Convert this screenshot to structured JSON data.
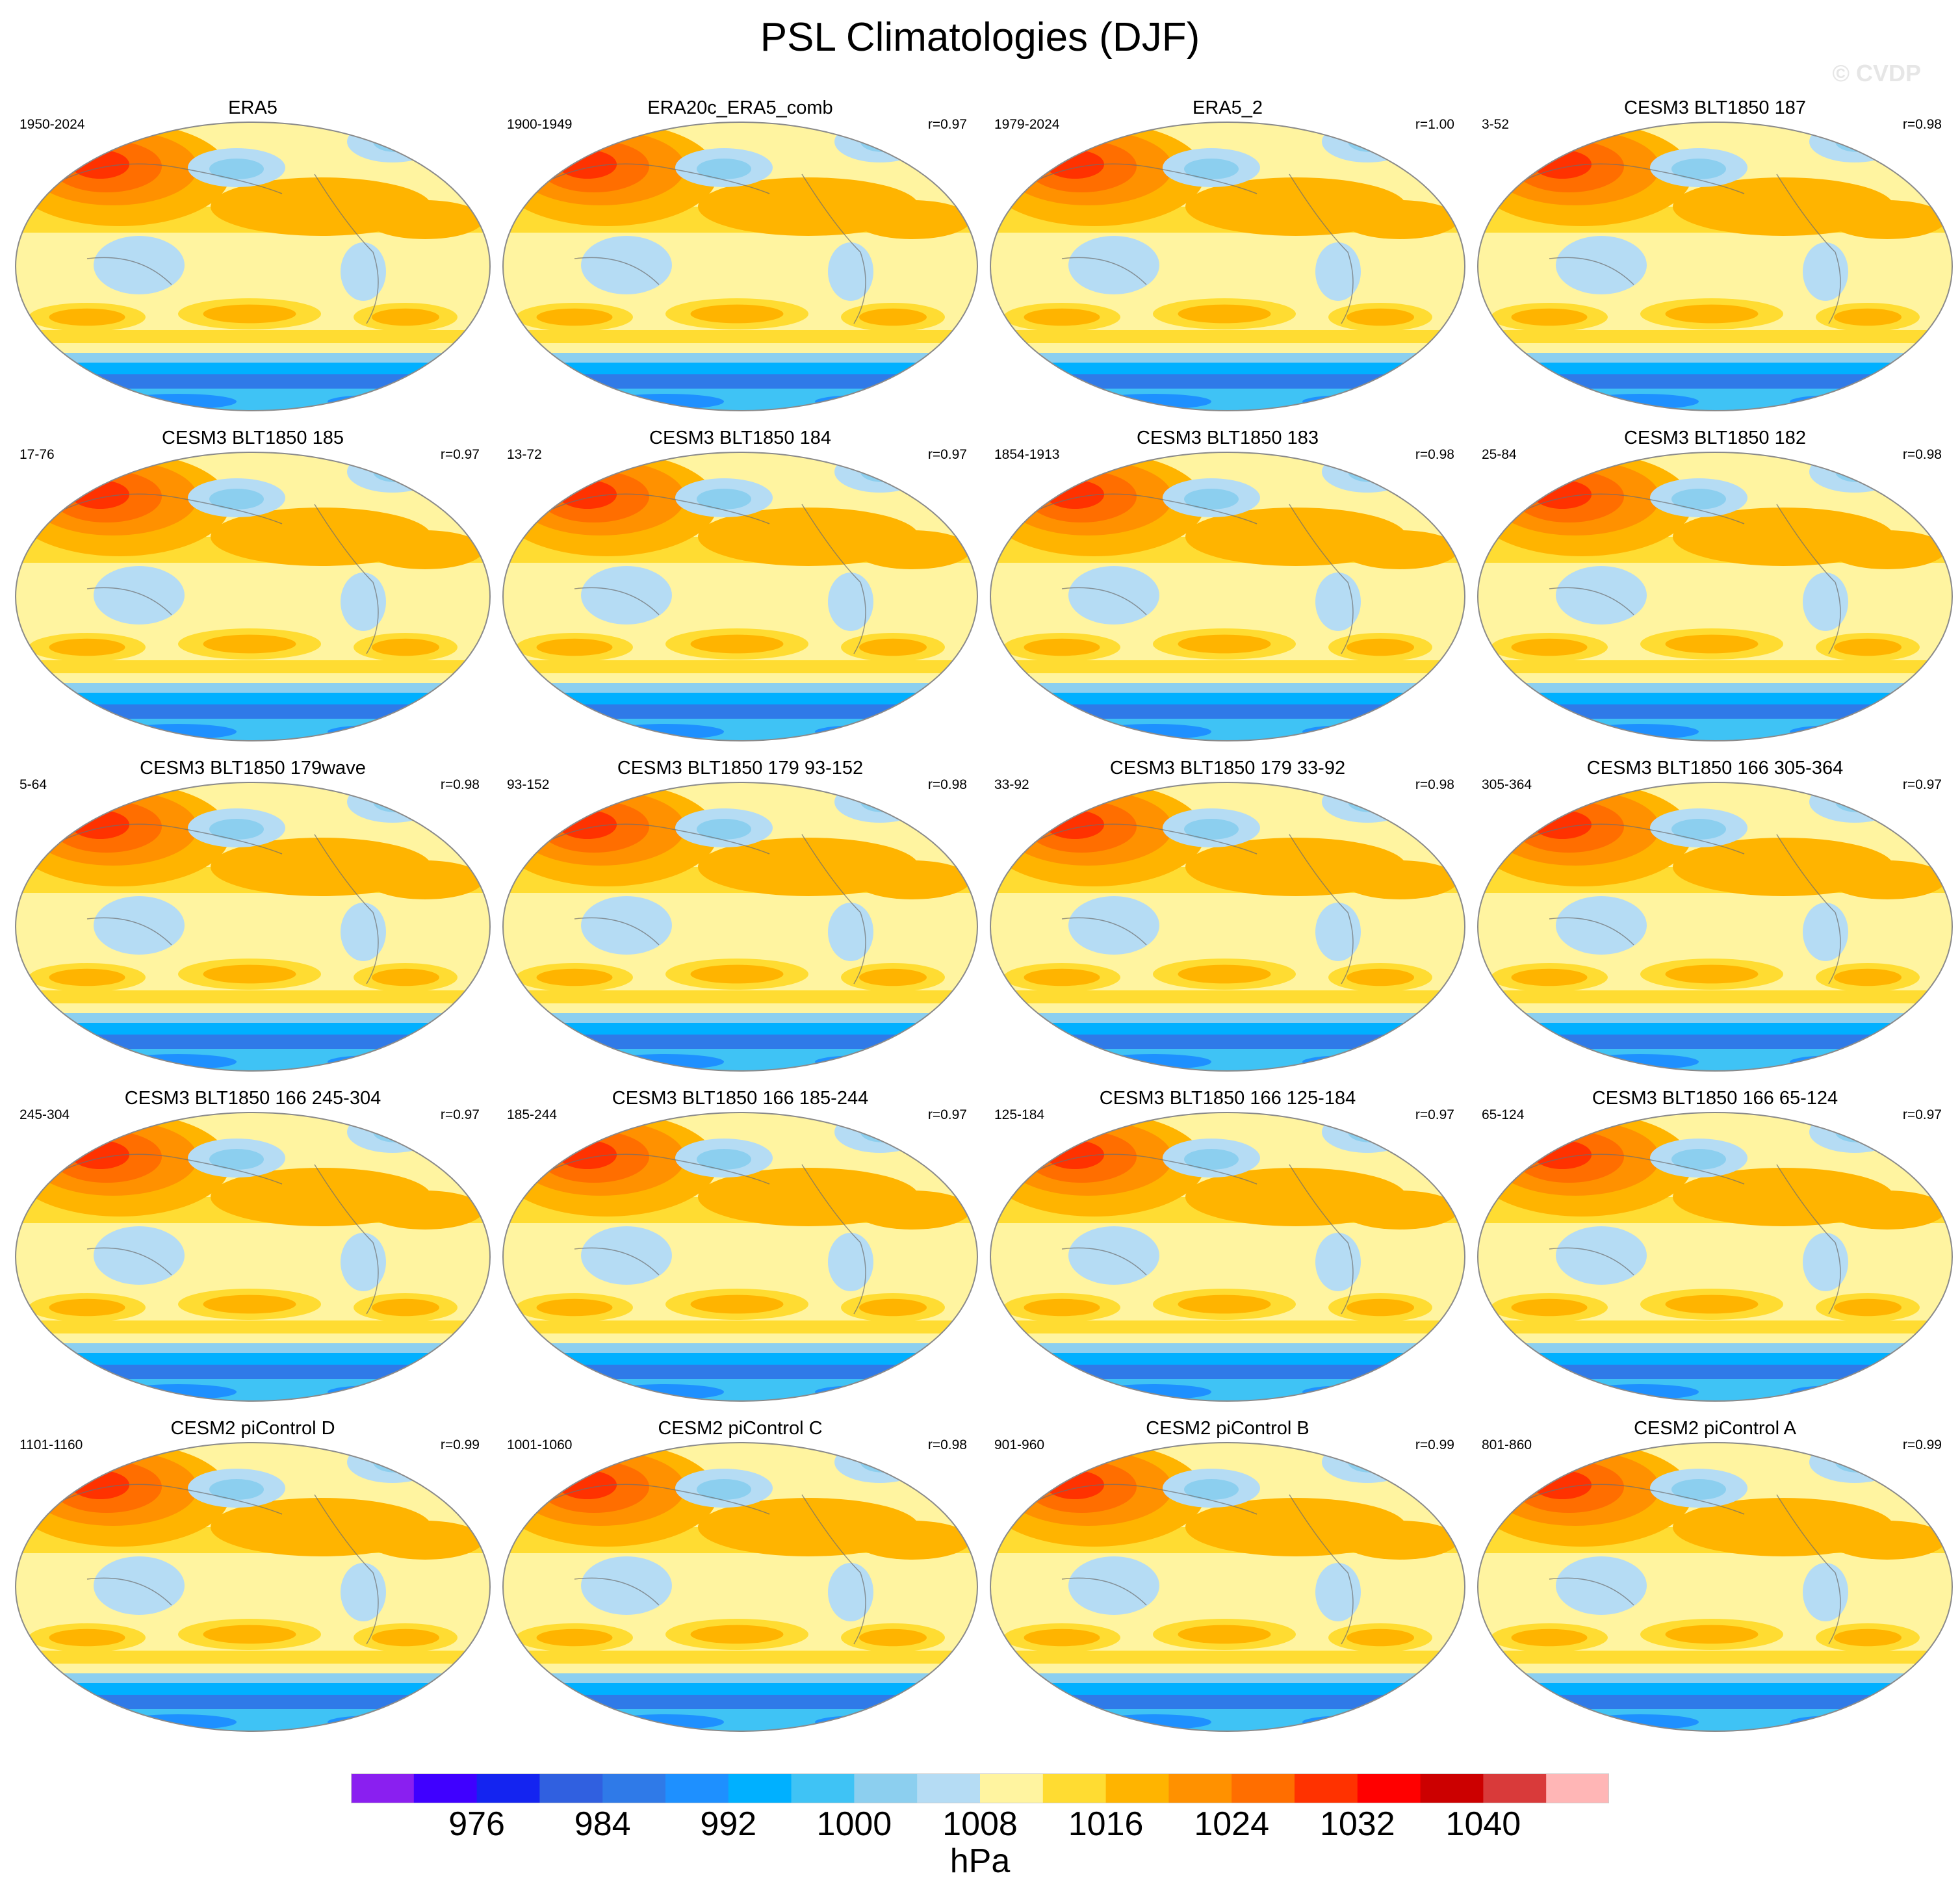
{
  "title": "PSL Climatologies (DJF)",
  "copyright": "© CVDP",
  "chart_data": {
    "type": "heatmap",
    "description_variable": "Sea level pressure, DJF mean",
    "units": "hPa",
    "colorbar": {
      "colors": [
        "#8a1ff0",
        "#3f00ff",
        "#1424f0",
        "#3060e0",
        "#2f7ae8",
        "#1e90ff",
        "#00b0ff",
        "#3fc3f5",
        "#8ccfef",
        "#b5dcf4",
        "#fff4a0",
        "#ffdc32",
        "#ffb400",
        "#ff9100",
        "#ff6e00",
        "#ff3200",
        "#ff0000",
        "#cc0000",
        "#d93a3a",
        "#ffb6b6"
      ],
      "tick_values": [
        976,
        984,
        992,
        1000,
        1008,
        1016,
        1024,
        1032,
        1040
      ],
      "tick_labels": [
        "976",
        "984",
        "992",
        "1000",
        "1008",
        "1016",
        "1024",
        "1032",
        "1040"
      ],
      "levels_start": 968,
      "level_step": 4
    },
    "panels": [
      {
        "title": "ERA5",
        "years": "1950-2024",
        "r": ""
      },
      {
        "title": "ERA20c_ERA5_comb",
        "years": "1900-1949",
        "r": "r=0.97"
      },
      {
        "title": "ERA5_2",
        "years": "1979-2024",
        "r": "r=1.00"
      },
      {
        "title": "CESM3 BLT1850 187",
        "years": "3-52",
        "r": "r=0.98"
      },
      {
        "title": "CESM3 BLT1850 185",
        "years": "17-76",
        "r": "r=0.97"
      },
      {
        "title": "CESM3 BLT1850 184",
        "years": "13-72",
        "r": "r=0.97"
      },
      {
        "title": "CESM3 BLT1850 183",
        "years": "1854-1913",
        "r": "r=0.98"
      },
      {
        "title": "CESM3 BLT1850 182",
        "years": "25-84",
        "r": "r=0.98"
      },
      {
        "title": "CESM3 BLT1850 179wave",
        "years": "5-64",
        "r": "r=0.98"
      },
      {
        "title": "CESM3 BLT1850 179 93-152",
        "years": "93-152",
        "r": "r=0.98"
      },
      {
        "title": "CESM3 BLT1850 179 33-92",
        "years": "33-92",
        "r": "r=0.98"
      },
      {
        "title": "CESM3 BLT1850 166 305-364",
        "years": "305-364",
        "r": "r=0.97"
      },
      {
        "title": "CESM3 BLT1850 166 245-304",
        "years": "245-304",
        "r": "r=0.97"
      },
      {
        "title": "CESM3 BLT1850 166 185-244",
        "years": "185-244",
        "r": "r=0.97"
      },
      {
        "title": "CESM3 BLT1850 166 125-184",
        "years": "125-184",
        "r": "r=0.97"
      },
      {
        "title": "CESM3 BLT1850 166 65-124",
        "years": "65-124",
        "r": "r=0.97"
      },
      {
        "title": "CESM2 piControl D",
        "years": "1101-1160",
        "r": "r=0.99"
      },
      {
        "title": "CESM2 piControl C",
        "years": "1001-1060",
        "r": "r=0.98"
      },
      {
        "title": "CESM2 piControl B",
        "years": "901-960",
        "r": "r=0.99"
      },
      {
        "title": "CESM2 piControl A",
        "years": "801-860",
        "r": "r=0.99"
      }
    ]
  }
}
